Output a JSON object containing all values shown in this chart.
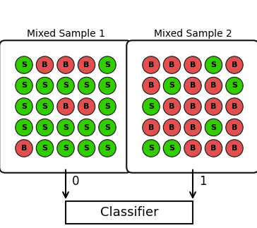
{
  "title1": "Mixed Sample 1",
  "title2": "Mixed Sample 2",
  "classifier_label": "Classifier",
  "label0": "0",
  "label1": "1",
  "green_color": "#33cc00",
  "red_color": "#e05050",
  "circle_edge_color": "#111111",
  "box_bg": "#ffffff",
  "box_edge": "#111111",
  "grid1": [
    [
      "S",
      "B",
      "B",
      "B",
      "S"
    ],
    [
      "S",
      "S",
      "S",
      "S",
      "S"
    ],
    [
      "S",
      "S",
      "B",
      "B",
      "S"
    ],
    [
      "S",
      "S",
      "S",
      "S",
      "S"
    ],
    [
      "B",
      "S",
      "S",
      "S",
      "S"
    ]
  ],
  "grid2": [
    [
      "B",
      "B",
      "B",
      "S",
      "B"
    ],
    [
      "B",
      "S",
      "B",
      "B",
      "S"
    ],
    [
      "S",
      "B",
      "B",
      "B",
      "B"
    ],
    [
      "B",
      "B",
      "B",
      "S",
      "B"
    ],
    [
      "S",
      "S",
      "B",
      "B",
      "B"
    ]
  ],
  "title_fontsize": 10,
  "label_fontsize": 12,
  "classifier_fontsize": 13,
  "circle_fontsize": 8,
  "fig_width": 3.64,
  "fig_height": 3.23,
  "dpi": 100
}
